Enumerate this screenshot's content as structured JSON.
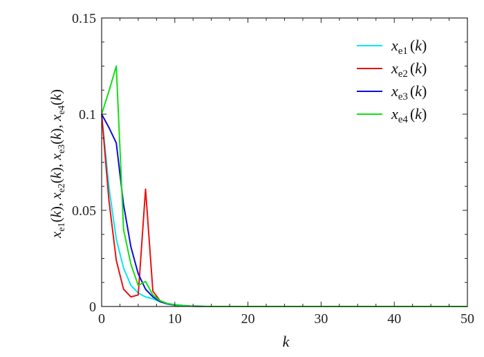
{
  "chart_data": {
    "type": "line",
    "xlabel": "k",
    "ylabel": "x_e1(k), x_e2(k), x_e3(k), x_e4(k)",
    "xlim": [
      0,
      50
    ],
    "ylim": [
      0,
      0.15
    ],
    "xticks": [
      0,
      10,
      20,
      30,
      40,
      50
    ],
    "yticks": [
      0,
      0.05,
      0.1,
      0.15
    ],
    "xtick_labels": [
      "0",
      "10",
      "20",
      "30",
      "40",
      "50"
    ],
    "ytick_labels": [
      "0",
      "0.05",
      "0.1",
      "0.15"
    ],
    "grid": false,
    "legend_position": "top-right",
    "x": [
      0,
      1,
      2,
      3,
      4,
      5,
      6,
      7,
      8,
      9,
      10,
      11,
      12,
      13,
      14,
      15,
      16,
      17,
      18,
      19,
      20,
      21,
      22,
      23,
      24,
      25,
      26,
      27,
      28,
      29,
      30,
      31,
      32,
      33,
      34,
      35,
      36,
      37,
      38,
      39,
      40,
      41,
      42,
      43,
      44,
      45,
      46,
      47,
      48,
      49,
      50
    ],
    "series": [
      {
        "name": "x_e1(k)",
        "legend_base": "x",
        "legend_sub": "e1",
        "legend_arg": "(k)",
        "color": "#00e8f0",
        "values": [
          0.1,
          0.062,
          0.035,
          0.02,
          0.011,
          0.007,
          0.005,
          0.004,
          0.0025,
          0.0015,
          0.001,
          0.0006,
          0.0003,
          0.0002,
          0.0001,
          0,
          0,
          0,
          0,
          0,
          0,
          0,
          0,
          0,
          0,
          0,
          0,
          0,
          0,
          0,
          0,
          0,
          0,
          0,
          0,
          0,
          0,
          0,
          0,
          0,
          0,
          0,
          0,
          0,
          0,
          0,
          0,
          0,
          0,
          0,
          0
        ]
      },
      {
        "name": "x_e2(k)",
        "legend_base": "x",
        "legend_sub": "e2",
        "legend_arg": "(k)",
        "color": "#e81010",
        "values": [
          0.1,
          0.055,
          0.024,
          0.009,
          0.005,
          0.006,
          0.061,
          0.008,
          0.003,
          0.0015,
          0.0008,
          0.0004,
          0.0002,
          0.0001,
          0,
          0,
          0,
          0,
          0,
          0,
          0,
          0,
          0,
          0,
          0,
          0,
          0,
          0,
          0,
          0,
          0,
          0,
          0,
          0,
          0,
          0,
          0,
          0,
          0,
          0,
          0,
          0,
          0,
          0,
          0,
          0,
          0,
          0,
          0,
          0,
          0
        ]
      },
      {
        "name": "x_e3(k)",
        "legend_base": "x",
        "legend_sub": "e3",
        "legend_arg": "(k)",
        "color": "#0a0ae0",
        "values": [
          0.1,
          0.093,
          0.085,
          0.053,
          0.031,
          0.017,
          0.009,
          0.005,
          0.0025,
          0.0013,
          0.0007,
          0.0004,
          0.0002,
          0.0001,
          0,
          0,
          0,
          0,
          0,
          0,
          0,
          0,
          0,
          0,
          0,
          0,
          0,
          0,
          0,
          0,
          0,
          0,
          0,
          0,
          0,
          0,
          0,
          0,
          0,
          0,
          0,
          0,
          0,
          0,
          0,
          0,
          0,
          0,
          0,
          0,
          0
        ]
      },
      {
        "name": "x_e4(k)",
        "legend_base": "x",
        "legend_sub": "e4",
        "legend_arg": "(k)",
        "color": "#10e010",
        "values": [
          0.1,
          0.112,
          0.125,
          0.04,
          0.022,
          0.011,
          0.013,
          0.006,
          0.003,
          0.0015,
          0.0008,
          0.0004,
          0.0002,
          0.0001,
          0,
          0,
          0,
          0,
          0,
          0,
          0,
          0,
          0,
          0,
          0,
          0,
          0,
          0,
          0,
          0,
          0,
          0,
          0,
          0,
          0,
          0,
          0,
          0,
          0,
          0,
          0,
          0,
          0,
          0,
          0,
          0,
          0,
          0,
          0,
          0,
          0
        ]
      }
    ]
  }
}
